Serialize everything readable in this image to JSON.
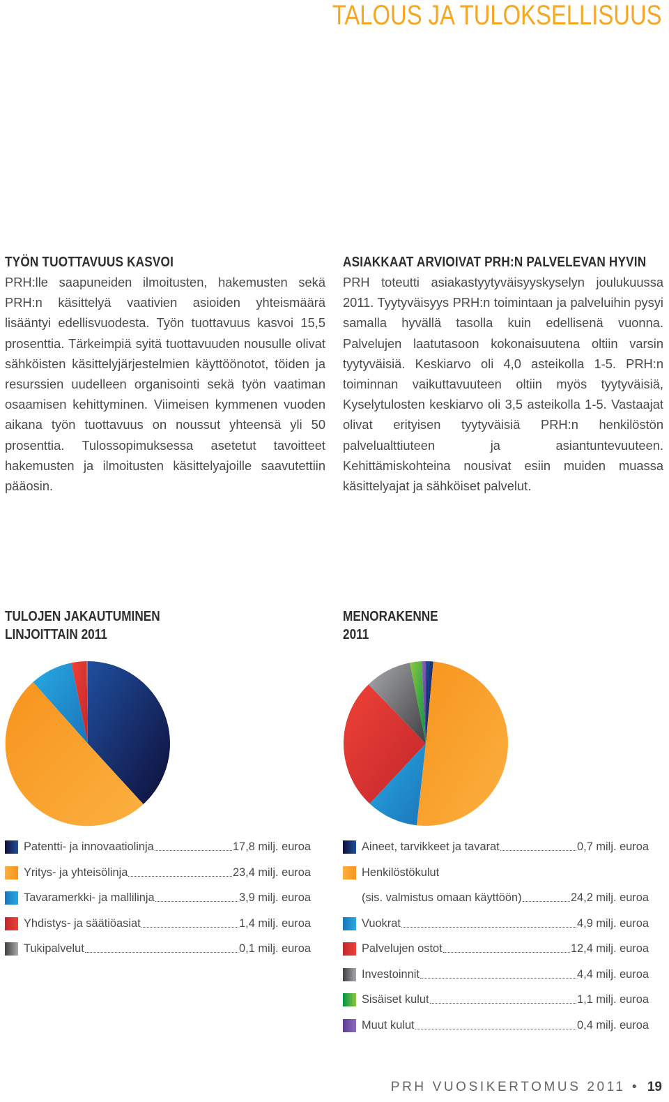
{
  "header": {
    "title": "TALOUS JA TULOKSELLISUUS"
  },
  "sections": {
    "left": {
      "heading": "TYÖN TUOTTAVUUS KASVOI",
      "text": "PRH:lle saapuneiden ilmoitusten, hakemusten sekä PRH:n käsittelyä vaativien asioiden yhteismäärä lisääntyi edellisvuodesta. Työn tuottavuus kasvoi 15,5 prosenttia. Tärkeimpiä syitä tuottavuuden nousulle olivat sähköisten käsittelyjärjestelmien käyttöönotot, töiden ja resurssien uudelleen organisointi sekä työn vaatiman osaamisen kehittyminen. Viimeisen kymmenen vuoden aikana työn tuottavuus on noussut yhteensä yli 50 prosenttia. Tulossopimuksessa asetetut tavoitteet hakemusten ja ilmoitusten käsittelyajoille saavutettiin pääosin."
    },
    "right": {
      "heading": "ASIAKKAAT ARVIOIVAT PRH:N PALVELEVAN HYVIN",
      "text": "PRH toteutti asiakastyytyväisyyskyselyn joulukuussa 2011. Tyytyväisyys PRH:n toimintaan ja palveluihin pysyi samalla hyvällä tasolla kuin edellisenä vuonna. Palvelujen laatutasoon kokonaisuutena oltiin varsin tyytyväisiä. Keskiarvo oli 4,0 asteikolla 1-5. PRH:n toiminnan vaikuttavuuteen oltiin myös tyytyväisiä, Kyselytulosten keskiarvo oli 3,5 asteikolla 1-5. Vastaajat olivat erityisen tyytyväisiä PRH:n henkilöstön palvelualttiuteen ja asiantuntevuuteen. Kehittämiskohteina nousivat esiin muiden muassa käsittelyajat ja sähköiset palvelut."
    }
  },
  "chart_data": [
    {
      "type": "pie",
      "title_line1": "TULOJEN JAKAUTUMINEN",
      "title_line2": "LINJOITTAIN 2011",
      "categories": [
        "Patentti- ja innovaatiolinja",
        "Yritys- ja yhteisölinja",
        "Tavaramerkki- ja mallilinja",
        "Yhdistys- ja säätiöasiat",
        "Tukipalvelut"
      ],
      "values": [
        17.8,
        23.4,
        3.9,
        1.4,
        0.1
      ],
      "value_labels": [
        "17,8 milj. euroa",
        "23,4 milj. euroa",
        "3,9 milj. euroa",
        "1,4 milj. euroa",
        "0,1 milj. euroa"
      ],
      "colors": [
        [
          "#1f4f9e",
          "#0f0f3a"
        ],
        [
          "#f7941d",
          "#fbb040"
        ],
        [
          "#27aae1",
          "#1b75bb"
        ],
        [
          "#ef4136",
          "#c1272d"
        ],
        [
          "#a7a9ac",
          "#414042"
        ]
      ]
    },
    {
      "type": "pie",
      "title_line1": "MENORAKENNE",
      "title_line2": "2011",
      "categories": [
        "Aineet, tarvikkeet ja tavarat",
        "Henkilöstökulut",
        "Vuokrat",
        "Palvelujen ostot",
        "Investoinnit",
        "Sisäiset kulut",
        "Muut kulut"
      ],
      "values": [
        0.7,
        24.2,
        4.9,
        12.4,
        4.4,
        1.1,
        0.4
      ],
      "value_labels": [
        "0,7 milj. euroa",
        "24,2 milj. euroa",
        "4,9 milj. euroa",
        "12,4 milj. euroa",
        "4,4 milj. euroa",
        "1,1 milj. euroa",
        "0,4 milj. euroa"
      ],
      "legend_extra": {
        "index": 1,
        "sublabel": "(sis. valmistus omaan käyttöön)"
      },
      "colors": [
        [
          "#1f4f9e",
          "#0f0f3a"
        ],
        [
          "#f7941d",
          "#fbb040"
        ],
        [
          "#27aae1",
          "#1b75bb"
        ],
        [
          "#ef4136",
          "#c1272d"
        ],
        [
          "#a7a9ac",
          "#414042"
        ],
        [
          "#8dc63f",
          "#009444"
        ],
        [
          "#8e6bbf",
          "#5b3e91"
        ]
      ]
    }
  ],
  "footer": {
    "publication": "PRH VUOSIKERTOMUS 2011",
    "separator": "•",
    "page": "19"
  }
}
